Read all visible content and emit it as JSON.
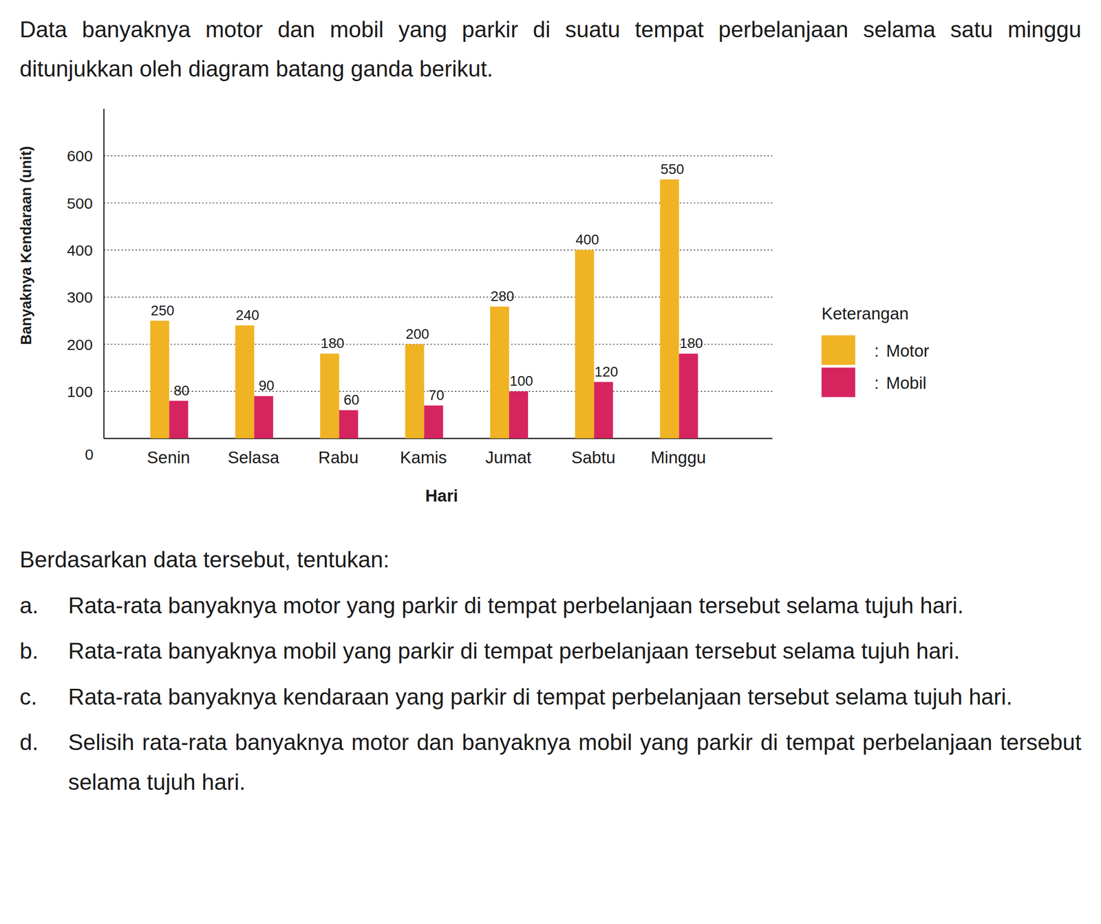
{
  "intro": "Data banyaknya motor dan mobil yang parkir di suatu tempat perbelanjaan selama satu minggu ditunjukkan oleh diagram batang ganda berikut.",
  "chart_data": {
    "type": "bar",
    "x_label": "Hari",
    "y_label": "Banyaknya Kendaraan (unit)",
    "categories": [
      "Senin",
      "Selasa",
      "Rabu",
      "Kamis",
      "Jumat",
      "Sabtu",
      "Minggu"
    ],
    "series": [
      {
        "name": "Motor",
        "color": "#f0b323",
        "values": [
          250,
          240,
          180,
          200,
          280,
          400,
          550
        ]
      },
      {
        "name": "Mobil",
        "color": "#d6245f",
        "values": [
          80,
          90,
          60,
          70,
          100,
          120,
          180
        ]
      }
    ],
    "ylim": [
      0,
      700
    ],
    "yticks": [
      0,
      100,
      200,
      300,
      400,
      500,
      600
    ],
    "grid": true,
    "data_labels": true,
    "legend": "right",
    "legend_title": "Keterangan",
    "legend_separator": ":"
  },
  "prompt": "Berdasarkan data tersebut, tentukan:",
  "questions": [
    {
      "letter": "a.",
      "text": "Rata-rata banyaknya motor yang parkir di tempat perbelanjaan tersebut selama tujuh hari."
    },
    {
      "letter": "b.",
      "text": "Rata-rata banyaknya mobil yang parkir di tempat perbelanjaan tersebut selama tujuh hari."
    },
    {
      "letter": "c.",
      "text": "Rata-rata banyaknya kendaraan yang parkir di tempat perbelanjaan tersebut selama tujuh hari."
    },
    {
      "letter": "d.",
      "text": "Selisih rata-rata banyaknya motor dan banyaknya mobil yang parkir di tempat perbelanjaan tersebut selama tujuh hari."
    }
  ]
}
